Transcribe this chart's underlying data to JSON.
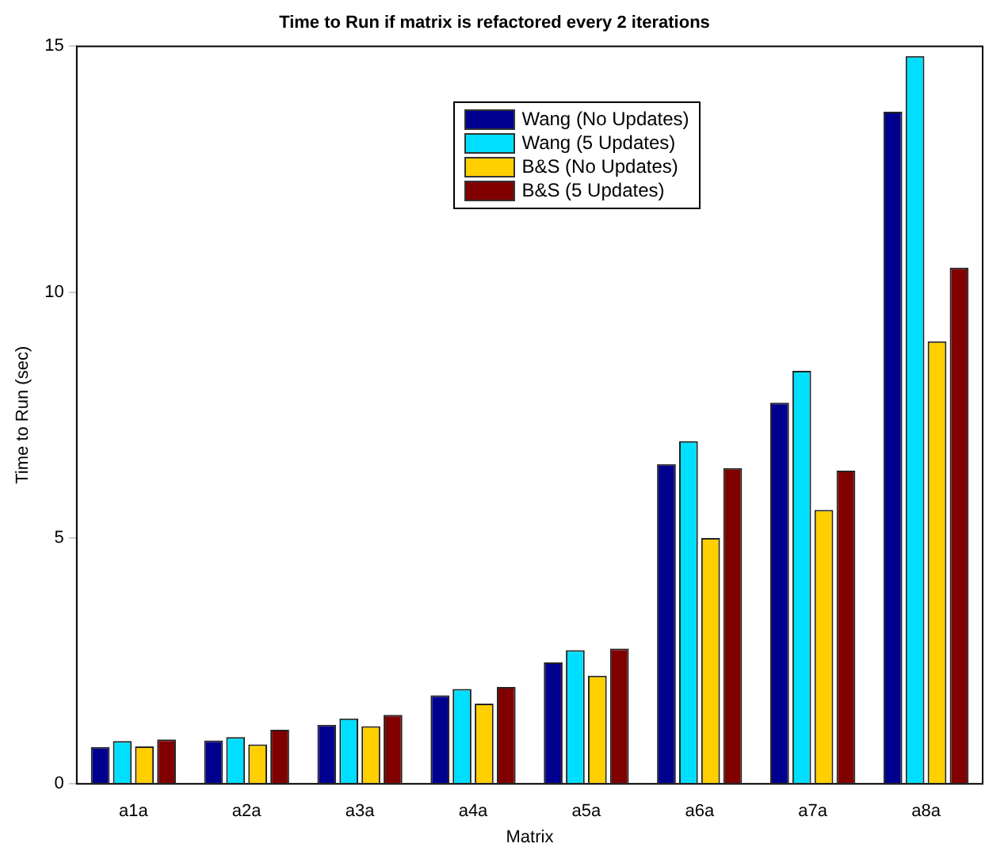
{
  "chart_data": {
    "type": "bar",
    "title": "Time to Run if matrix is refactored every 2 iterations",
    "xlabel": "Matrix",
    "ylabel": "Time to Run (sec)",
    "categories": [
      "a1a",
      "a2a",
      "a3a",
      "a4a",
      "a5a",
      "a6a",
      "a7a",
      "a8a"
    ],
    "series": [
      {
        "name": "Wang (No Updates)",
        "color": "#00008f",
        "values": [
          0.75,
          0.88,
          1.2,
          1.8,
          2.47,
          6.5,
          7.75,
          13.67
        ]
      },
      {
        "name": "Wang (5 Updates)",
        "color": "#00dfff",
        "values": [
          0.87,
          0.95,
          1.33,
          1.93,
          2.72,
          6.97,
          8.4,
          14.8
        ]
      },
      {
        "name": "B&S (No Updates)",
        "color": "#ffcf00",
        "values": [
          0.76,
          0.8,
          1.17,
          1.63,
          2.2,
          5.0,
          5.57,
          9.0
        ]
      },
      {
        "name": "B&S (5 Updates)",
        "color": "#800000",
        "values": [
          0.9,
          1.1,
          1.4,
          1.97,
          2.75,
          6.42,
          6.37,
          10.5
        ]
      }
    ],
    "ylim": [
      0,
      15
    ],
    "yticks": [
      0,
      5,
      10,
      15
    ],
    "grid": false,
    "legend": "top"
  }
}
